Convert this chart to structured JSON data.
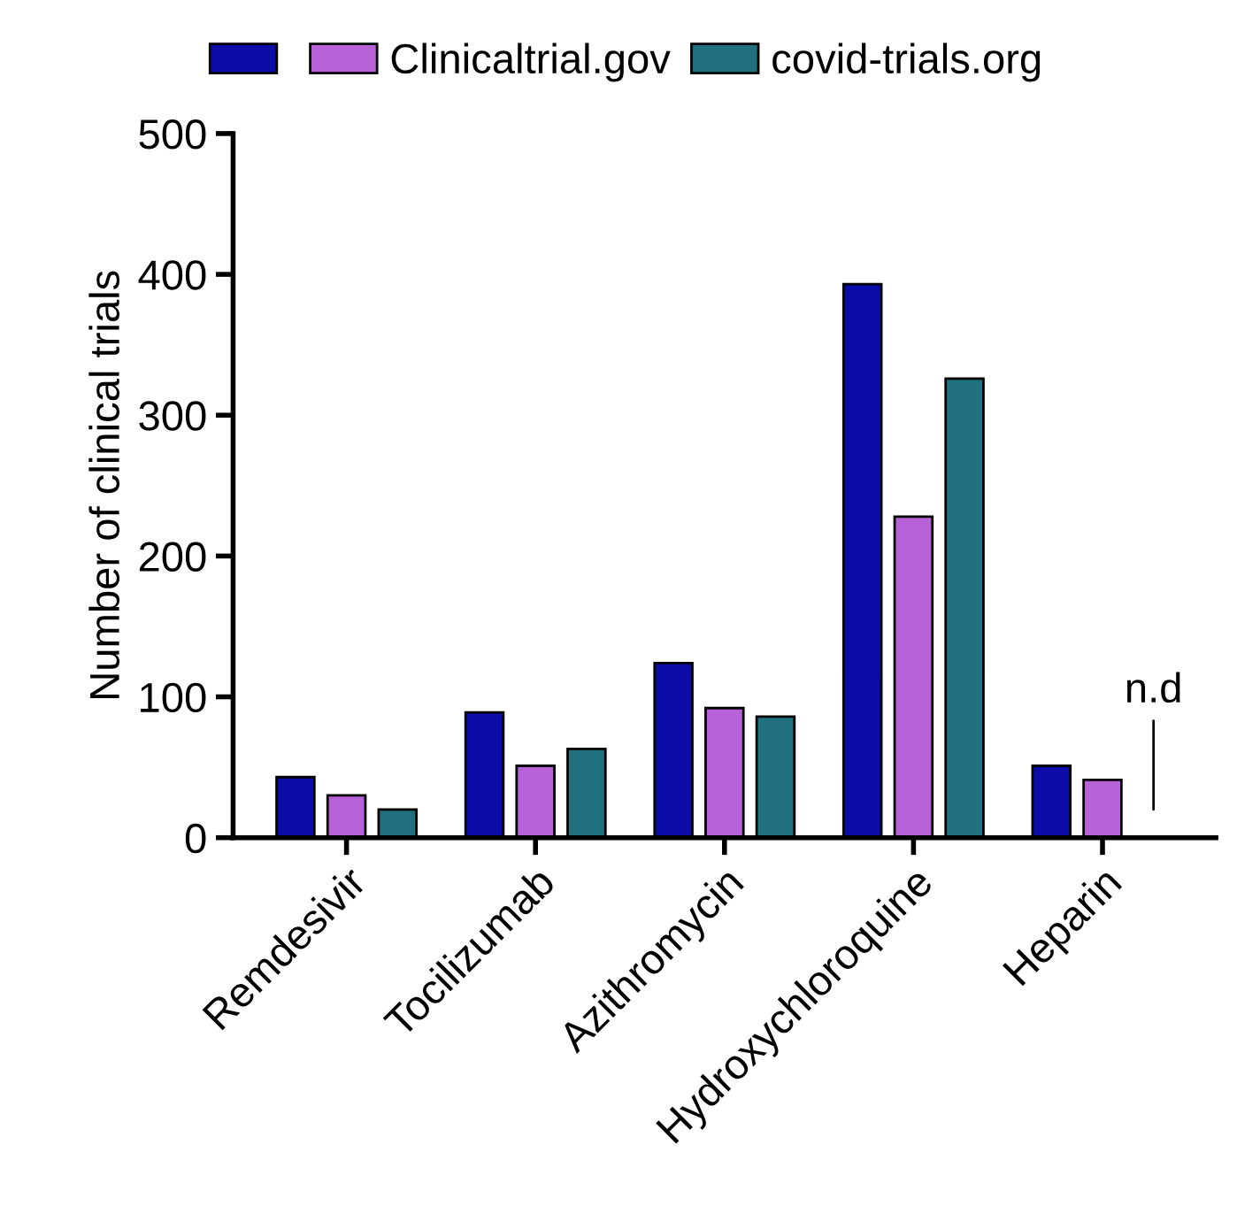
{
  "chart_data": {
    "type": "bar",
    "ylabel": "Number of clinical trials",
    "categories": [
      "Remdesivir",
      "Tocilizumab",
      "Azithromycin",
      "Hydroxychloroquine",
      "Heparin"
    ],
    "series": [
      {
        "color": "#0c0ca8",
        "values": [
          43,
          89,
          124,
          393,
          51
        ]
      },
      {
        "name": "Clinicaltrial.gov",
        "color": "#b862d9",
        "values": [
          30,
          51,
          92,
          228,
          41
        ]
      },
      {
        "name": "covid-trials.org",
        "color": "#207080",
        "values": [
          20,
          63,
          86,
          326,
          null
        ]
      }
    ],
    "ylim": [
      0,
      500
    ],
    "yticks": [
      0,
      100,
      200,
      300,
      400,
      500
    ],
    "grid": false,
    "legend": "top",
    "annotations": [
      "n.d"
    ]
  }
}
